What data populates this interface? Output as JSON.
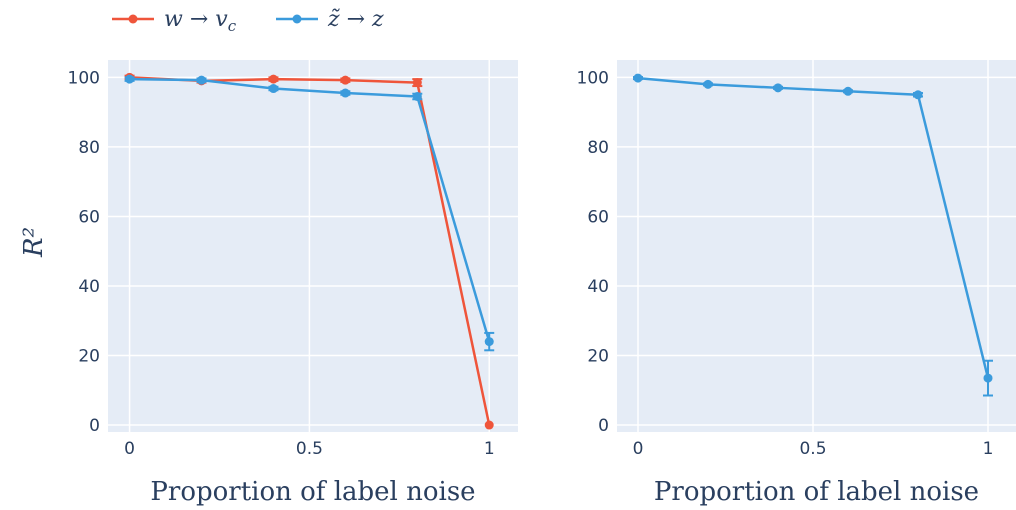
{
  "chart_data": [
    {
      "type": "line",
      "xlabel": "Proportion of label noise",
      "ylabel": "R²",
      "xlim": [
        -0.06,
        1.08
      ],
      "ylim": [
        -2,
        105
      ],
      "xticks": [
        0,
        0.5,
        1
      ],
      "xtick_labels": [
        "0",
        "0.5",
        "1"
      ],
      "yticks": [
        0,
        20,
        40,
        60,
        80,
        100
      ],
      "grid": true,
      "legend": "top-left",
      "series": [
        {
          "name": "w → v_c",
          "color": "#ef553b",
          "x": [
            0,
            0.2,
            0.4,
            0.6,
            0.8,
            1
          ],
          "y": [
            100,
            99,
            99.5,
            99.2,
            98.5,
            0
          ],
          "err": [
            0.5,
            0.5,
            0.5,
            0.5,
            1,
            0
          ]
        },
        {
          "name": "z̃ → z",
          "color": "#3b9bdc",
          "x": [
            0,
            0.2,
            0.4,
            0.6,
            0.8,
            1
          ],
          "y": [
            99.5,
            99.2,
            96.8,
            95.5,
            94.5,
            24
          ],
          "err": [
            0.5,
            0.5,
            0.5,
            0.5,
            0.8,
            2.5
          ]
        }
      ]
    },
    {
      "type": "line",
      "xlabel": "Proportion of label noise",
      "ylabel": "",
      "xlim": [
        -0.06,
        1.08
      ],
      "ylim": [
        -2,
        105
      ],
      "xticks": [
        0,
        0.5,
        1
      ],
      "xtick_labels": [
        "0",
        "0.5",
        "1"
      ],
      "yticks": [
        0,
        20,
        40,
        60,
        80,
        100
      ],
      "grid": true,
      "series": [
        {
          "name": "",
          "color": "#3b9bdc",
          "x": [
            0,
            0.2,
            0.4,
            0.6,
            0.8,
            1
          ],
          "y": [
            99.8,
            98,
            97,
            96,
            95,
            13.5
          ],
          "err": [
            0.3,
            0.3,
            0.3,
            0.3,
            0.5,
            5
          ]
        }
      ]
    }
  ],
  "legend": {
    "items": [
      {
        "label": "w → v",
        "subscript": "c",
        "color": "#ef553b"
      },
      {
        "label": "z̃ → z",
        "subscript": "",
        "color": "#3b9bdc"
      }
    ]
  }
}
